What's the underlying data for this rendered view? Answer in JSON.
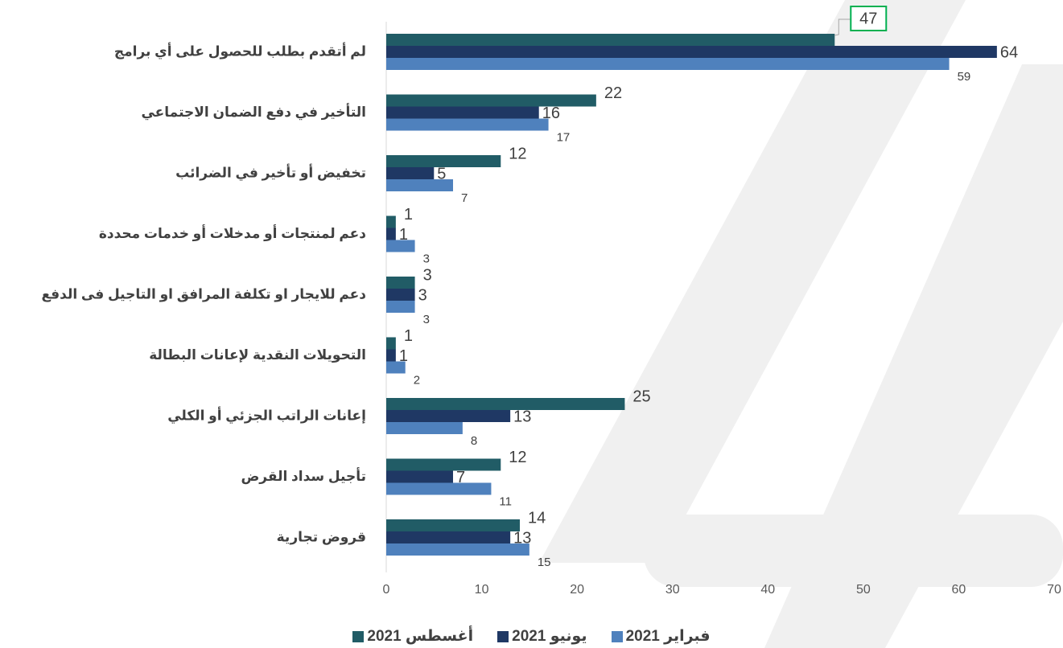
{
  "chart_data": {
    "type": "bar",
    "orientation": "horizontal",
    "categories": [
      "لم أتقدم بطلب للحصول على أي برامج",
      "التأخير في دفع الضمان الاجتماعي",
      "تخفيض أو تأخير في الضرائب",
      "دعم لمنتجات أو مدخلات أو خدمات محددة",
      "دعم للايجار او تكلفة المرافق او التاجيل فى الدفع",
      "التحويلات النقدية لإعانات البطالة",
      "إعانات الراتب الجزئي أو الكلي",
      "تأجيل سداد القرض",
      "قروض تجارية"
    ],
    "series": [
      {
        "name": "أغسطس 2021",
        "color": "#215c66",
        "values": [
          47,
          22,
          12,
          1,
          3,
          1,
          25,
          12,
          14
        ]
      },
      {
        "name": "يونيو 2021",
        "color": "#1f3864",
        "values": [
          64,
          16,
          5,
          1,
          3,
          1,
          13,
          7,
          13
        ]
      },
      {
        "name": "فبراير 2021",
        "color": "#4f81bd",
        "values": [
          59,
          17,
          7,
          3,
          3,
          2,
          8,
          11,
          15
        ]
      }
    ],
    "xlim": [
      0,
      70
    ],
    "xticks": [
      0,
      10,
      20,
      30,
      40,
      50,
      60,
      70
    ]
  }
}
